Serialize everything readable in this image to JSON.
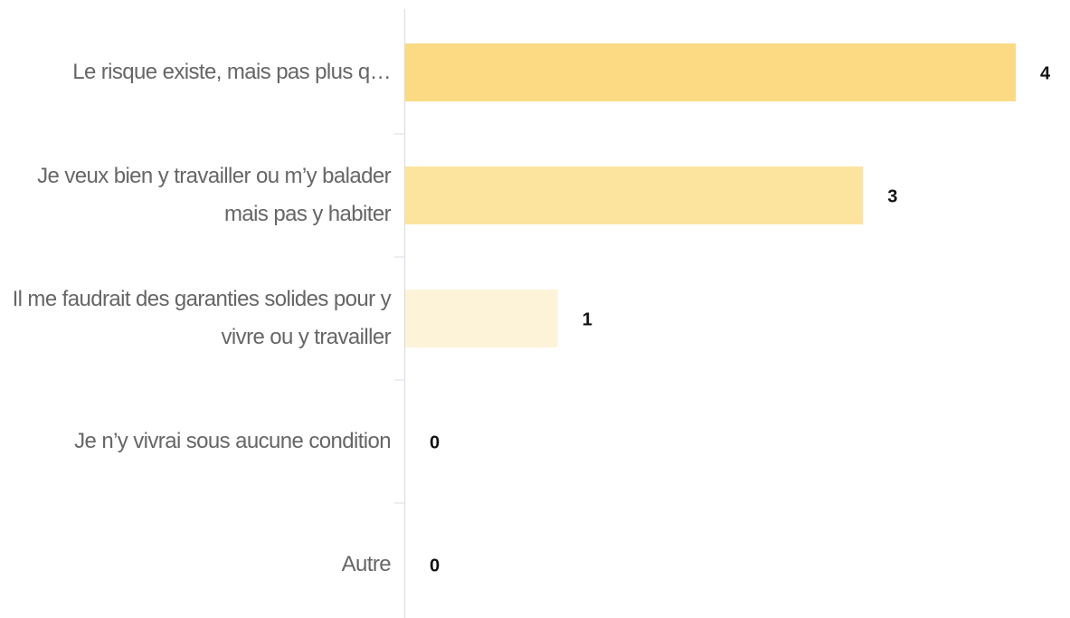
{
  "chart_data": {
    "type": "hbar",
    "categories": [
      "Le risque existe, mais pas plus q…",
      "Je veux bien y travailler ou m’y balader mais pas y habiter",
      "Il me faudrait des garanties solides pour y vivre ou y travailler",
      "Je n’y vivrai sous aucune condition",
      "Autre"
    ],
    "values": [
      4,
      3,
      1,
      0,
      0
    ],
    "colors": [
      "#fbda83",
      "#fce49f",
      "#fdf3d9",
      "#fdf3d9",
      "#fdf3d9"
    ],
    "xlim": [
      0,
      4
    ]
  }
}
